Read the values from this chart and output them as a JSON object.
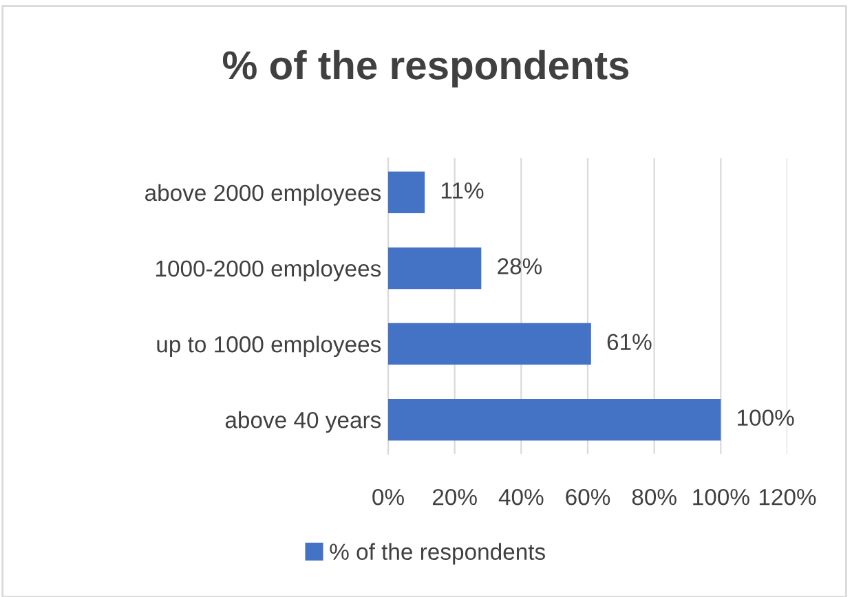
{
  "chart_data": {
    "type": "bar",
    "orientation": "horizontal",
    "title": "% of the respondents",
    "categories": [
      "above 2000 employees",
      "1000-2000 employees",
      "up to 1000 employees",
      "above 40 years"
    ],
    "series": [
      {
        "name": "% of the respondents",
        "color": "#4472c4",
        "values": [
          11,
          28,
          61,
          100
        ],
        "value_labels": [
          "11%",
          "28%",
          "61%",
          "100%"
        ]
      }
    ],
    "xlim": [
      0,
      120
    ],
    "xticks": [
      {
        "value": 0,
        "label": "0%"
      },
      {
        "value": 20,
        "label": "20%"
      },
      {
        "value": 40,
        "label": "40%"
      },
      {
        "value": 60,
        "label": "60%"
      },
      {
        "value": 80,
        "label": "80%"
      },
      {
        "value": 100,
        "label": "100%"
      },
      {
        "value": 120,
        "label": "120%"
      }
    ],
    "grid": "x",
    "legend": "bottom"
  }
}
